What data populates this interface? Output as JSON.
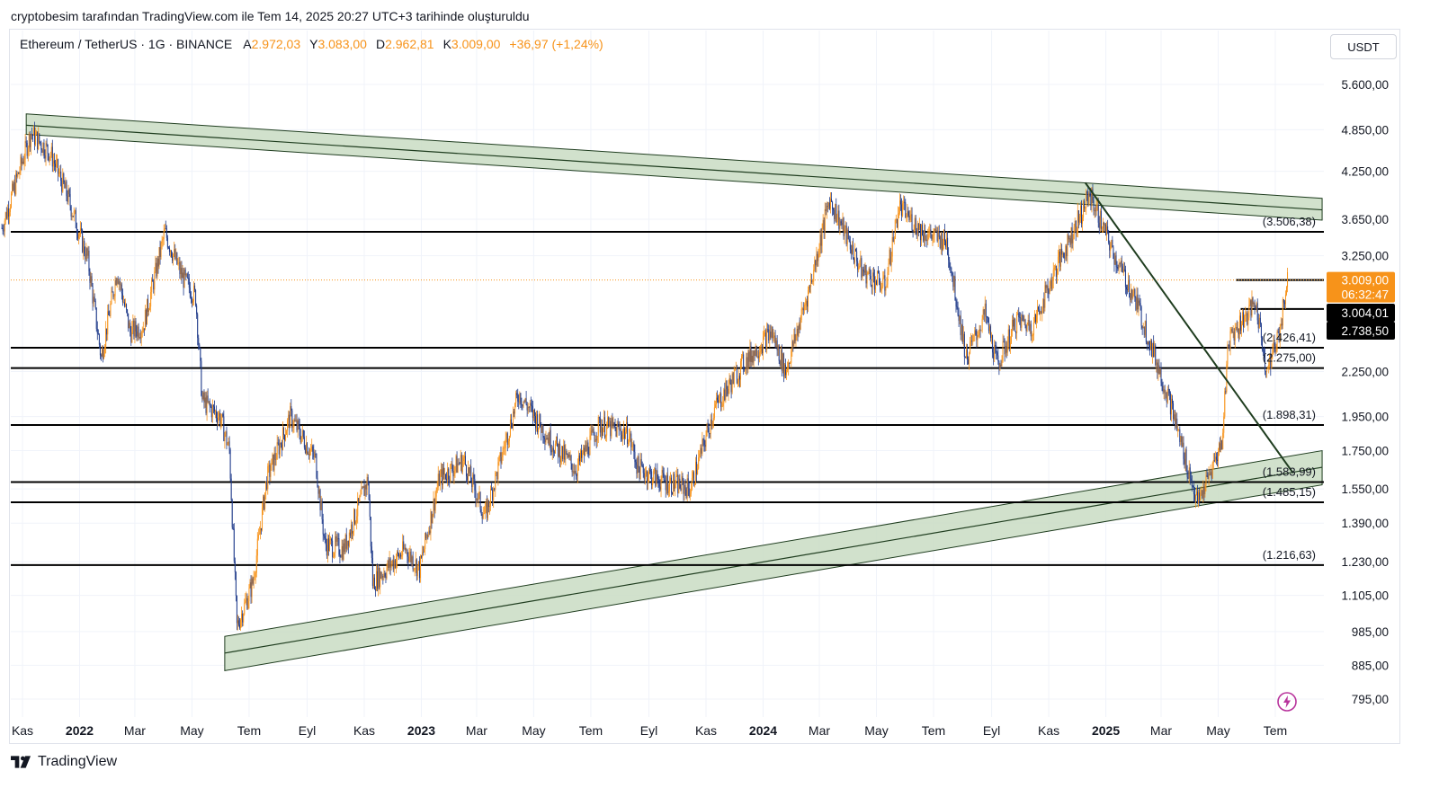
{
  "header": {
    "credit": "cryptobesim tarafından TradingView.com ile Tem 14, 2025 20:27 UTC+3 tarihinde oluşturuldu"
  },
  "symbol_bar": {
    "symbol": "Ethereum / TetherUS · 1G · BINANCE",
    "open_label": "A",
    "open": "2.972,03",
    "high_label": "Y",
    "high": "3.083,00",
    "low_label": "D",
    "low": "2.962,81",
    "close_label": "K",
    "close": "3.009,00",
    "change": "+36,97 (+1,24%)"
  },
  "currency": "USDT",
  "footer": {
    "brand": "TradingView"
  },
  "colors": {
    "up": "#f7931a",
    "down": "#1e3a8a",
    "channel_fill": "#c9dcc3",
    "channel_line": "#1f3d1f",
    "level_line": "#000000",
    "price_tag": "#f7931a",
    "dark_tag": "#000000",
    "icon_flash": "#b8339c"
  },
  "icons": {
    "flash": "flash-icon",
    "tradingview_logo": "tradingview-logo-icon"
  },
  "chart_data": {
    "type": "candlestick",
    "scale": "log",
    "y_ticks": [
      {
        "v": 5600,
        "label": "5.600,00"
      },
      {
        "v": 4850,
        "label": "4.850,00"
      },
      {
        "v": 4250,
        "label": "4.250,00"
      },
      {
        "v": 3650,
        "label": "3.650,00"
      },
      {
        "v": 3250,
        "label": "3.250,00"
      },
      {
        "v": 2250,
        "label": "2.250,00"
      },
      {
        "v": 1950,
        "label": "1.950,00"
      },
      {
        "v": 1750,
        "label": "1.750,00"
      },
      {
        "v": 1550,
        "label": "1.550,00"
      },
      {
        "v": 1390,
        "label": "1.390,00"
      },
      {
        "v": 1230,
        "label": "1.230,00"
      },
      {
        "v": 1105,
        "label": "1.105,00"
      },
      {
        "v": 985,
        "label": "985,00"
      },
      {
        "v": 885,
        "label": "885,00"
      },
      {
        "v": 795,
        "label": "795,00"
      }
    ],
    "x_ticks": [
      {
        "date": "2021-11-01",
        "label": "Kas",
        "bold": false
      },
      {
        "date": "2022-01-01",
        "label": "2022",
        "bold": true
      },
      {
        "date": "2022-03-01",
        "label": "Mar",
        "bold": false
      },
      {
        "date": "2022-05-01",
        "label": "May",
        "bold": false
      },
      {
        "date": "2022-07-01",
        "label": "Tem",
        "bold": false
      },
      {
        "date": "2022-09-01",
        "label": "Eyl",
        "bold": false
      },
      {
        "date": "2022-11-01",
        "label": "Kas",
        "bold": false
      },
      {
        "date": "2023-01-01",
        "label": "2023",
        "bold": true
      },
      {
        "date": "2023-03-01",
        "label": "Mar",
        "bold": false
      },
      {
        "date": "2023-05-01",
        "label": "May",
        "bold": false
      },
      {
        "date": "2023-07-01",
        "label": "Tem",
        "bold": false
      },
      {
        "date": "2023-09-01",
        "label": "Eyl",
        "bold": false
      },
      {
        "date": "2023-11-01",
        "label": "Kas",
        "bold": false
      },
      {
        "date": "2024-01-01",
        "label": "2024",
        "bold": true
      },
      {
        "date": "2024-03-01",
        "label": "Mar",
        "bold": false
      },
      {
        "date": "2024-05-01",
        "label": "May",
        "bold": false
      },
      {
        "date": "2024-07-01",
        "label": "Tem",
        "bold": false
      },
      {
        "date": "2024-09-01",
        "label": "Eyl",
        "bold": false
      },
      {
        "date": "2024-11-01",
        "label": "Kas",
        "bold": false
      },
      {
        "date": "2025-01-01",
        "label": "2025",
        "bold": true
      },
      {
        "date": "2025-03-01",
        "label": "Mar",
        "bold": false
      },
      {
        "date": "2025-05-01",
        "label": "May",
        "bold": false
      },
      {
        "date": "2025-07-01",
        "label": "Tem",
        "bold": false
      }
    ],
    "horizontal_levels": [
      {
        "v": 3506.38,
        "label": "(3.506,38)",
        "from": "2021-10-01",
        "to": "2025-08-20"
      },
      {
        "v": 2426.41,
        "label": "(2.426,41)",
        "from": "2021-10-01",
        "to": "2025-08-20"
      },
      {
        "v": 2275.0,
        "label": "(2.275,00)",
        "from": "2021-10-01",
        "to": "2025-08-20"
      },
      {
        "v": 1898.31,
        "label": "(1.898,31)",
        "from": "2021-10-01",
        "to": "2025-08-20"
      },
      {
        "v": 1583.99,
        "label": "(1.583,99)",
        "from": "2021-10-01",
        "to": "2025-08-20"
      },
      {
        "v": 1485.15,
        "label": "(1.485,15)",
        "from": "2021-10-01",
        "to": "2025-08-20"
      },
      {
        "v": 1216.63,
        "label": "(1.216,63)",
        "from": "2021-10-01",
        "to": "2025-08-20"
      }
    ],
    "short_levels": [
      {
        "v": 3009.0,
        "from": "2025-05-20",
        "to": "2025-08-20"
      },
      {
        "v": 2745.0,
        "from": "2025-05-25",
        "to": "2025-08-20"
      }
    ],
    "channels": [
      {
        "name": "upper",
        "from": "2021-11-05",
        "to": "2025-08-20",
        "outer_from": 5100,
        "outer_to": 3900,
        "mid_from": 4920,
        "mid_to": 3760,
        "inner_from": 4780,
        "inner_to": 3640
      },
      {
        "name": "lower",
        "from": "2022-06-05",
        "to": "2025-08-20",
        "outer_from": 970,
        "outer_to": 1750,
        "mid_from": 920,
        "mid_to": 1660,
        "inner_from": 870,
        "inner_to": 1570
      }
    ],
    "trendline": {
      "from_date": "2024-12-10",
      "from_v": 4100,
      "to_date": "2025-07-20",
      "to_v": 1630
    },
    "last_price": {
      "v": 3009.0,
      "label": "3.009,00",
      "countdown": "06:32:47"
    },
    "price_tags": [
      {
        "v": 2990,
        "label": "3.004,01"
      },
      {
        "v": 2745,
        "label": "2.738,50"
      }
    ],
    "key_points": [
      [
        "2021-10-10",
        3550
      ],
      [
        "2021-11-10",
        4800
      ],
      [
        "2021-12-01",
        4500
      ],
      [
        "2021-12-20",
        3900
      ],
      [
        "2022-01-10",
        3200
      ],
      [
        "2022-01-24",
        2350
      ],
      [
        "2022-02-10",
        3100
      ],
      [
        "2022-02-24",
        2550
      ],
      [
        "2022-03-10",
        2600
      ],
      [
        "2022-04-02",
        3500
      ],
      [
        "2022-04-20",
        3050
      ],
      [
        "2022-05-05",
        2850
      ],
      [
        "2022-05-12",
        2050
      ],
      [
        "2022-05-31",
        1950
      ],
      [
        "2022-06-10",
        1750
      ],
      [
        "2022-06-18",
        1000
      ],
      [
        "2022-07-05",
        1150
      ],
      [
        "2022-07-20",
        1600
      ],
      [
        "2022-08-14",
        1950
      ],
      [
        "2022-09-10",
        1700
      ],
      [
        "2022-09-20",
        1300
      ],
      [
        "2022-10-10",
        1280
      ],
      [
        "2022-11-05",
        1600
      ],
      [
        "2022-11-10",
        1150
      ],
      [
        "2022-12-15",
        1280
      ],
      [
        "2022-12-30",
        1200
      ],
      [
        "2023-01-20",
        1600
      ],
      [
        "2023-02-15",
        1700
      ],
      [
        "2023-03-10",
        1420
      ],
      [
        "2023-04-15",
        2100
      ],
      [
        "2023-05-20",
        1800
      ],
      [
        "2023-06-15",
        1650
      ],
      [
        "2023-07-10",
        1900
      ],
      [
        "2023-08-10",
        1850
      ],
      [
        "2023-08-20",
        1660
      ],
      [
        "2023-09-10",
        1600
      ],
      [
        "2023-10-15",
        1550
      ],
      [
        "2023-11-10",
        2000
      ],
      [
        "2023-12-10",
        2300
      ],
      [
        "2024-01-10",
        2550
      ],
      [
        "2024-01-25",
        2250
      ],
      [
        "2024-02-20",
        2950
      ],
      [
        "2024-03-12",
        3900
      ],
      [
        "2024-04-15",
        3100
      ],
      [
        "2024-05-10",
        2950
      ],
      [
        "2024-05-25",
        3800
      ],
      [
        "2024-06-20",
        3500
      ],
      [
        "2024-07-15",
        3400
      ],
      [
        "2024-08-05",
        2350
      ],
      [
        "2024-08-25",
        2700
      ],
      [
        "2024-09-07",
        2300
      ],
      [
        "2024-09-28",
        2650
      ],
      [
        "2024-10-15",
        2600
      ],
      [
        "2024-11-10",
        3150
      ],
      [
        "2024-12-15",
        3950
      ],
      [
        "2025-01-10",
        3250
      ],
      [
        "2025-02-03",
        2800
      ],
      [
        "2025-02-25",
        2300
      ],
      [
        "2025-03-10",
        2050
      ],
      [
        "2025-04-09",
        1480
      ],
      [
        "2025-04-20",
        1600
      ],
      [
        "2025-05-05",
        1800
      ],
      [
        "2025-05-12",
        2500
      ],
      [
        "2025-06-10",
        2800
      ],
      [
        "2025-06-22",
        2250
      ],
      [
        "2025-07-05",
        2550
      ],
      [
        "2025-07-14",
        3009
      ]
    ]
  }
}
